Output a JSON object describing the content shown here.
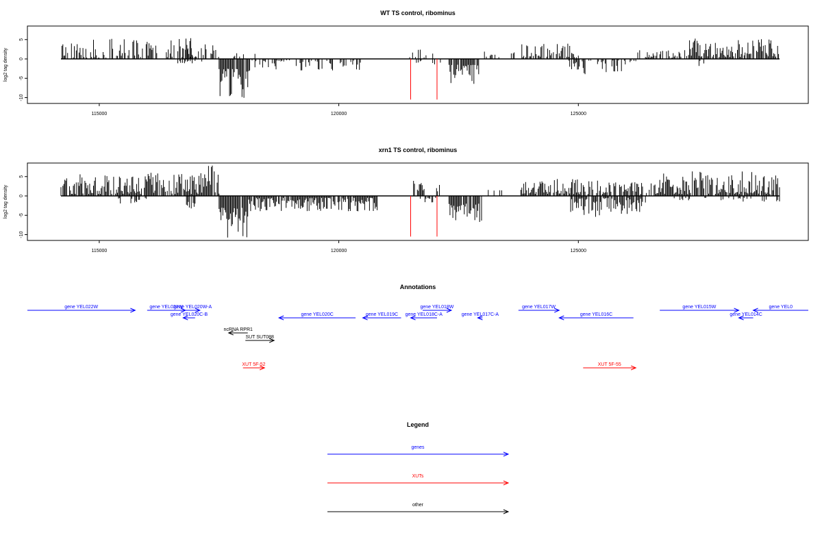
{
  "chart_data": [
    {
      "type": "bar",
      "title": "WT TS control, ribominus",
      "ylabel": "log2 tag density",
      "xlabel": "",
      "xlim": [
        113500,
        129800
      ],
      "ylim": [
        -11.5,
        8.5
      ],
      "x_ticks": [
        115000,
        120000,
        125000
      ],
      "x_tick_labels": [
        "115000",
        "120000",
        "125000"
      ],
      "y_ticks": [
        5,
        0,
        -5,
        -10
      ],
      "y_tick_labels": [
        "5",
        "0",
        "-5",
        "-10"
      ],
      "baseline_range": [
        114200,
        129200
      ],
      "colors": {
        "bars": "#000000",
        "markers": "#ff0000"
      },
      "markers": [
        {
          "x": 121500,
          "y_bottom": -10.5
        },
        {
          "x": 122050,
          "y_bottom": -10.5
        }
      ],
      "density": {
        "step": 20,
        "segments": [
          {
            "start": 114200,
            "end": 116950,
            "min": 0.3,
            "max": 5.2,
            "fill": 0.6,
            "sign": 1
          },
          {
            "start": 116600,
            "end": 117250,
            "min": 0.5,
            "max": 1.2,
            "fill": 0.25,
            "sign": -1
          },
          {
            "start": 116650,
            "end": 117500,
            "min": 0.5,
            "max": 5.5,
            "fill": 0.55,
            "sign": 1
          },
          {
            "start": 117500,
            "end": 118150,
            "min": 2.5,
            "max": 10.5,
            "fill": 0.95,
            "sign": -1
          },
          {
            "start": 117750,
            "end": 118250,
            "min": 0.5,
            "max": 1.5,
            "fill": 0.3,
            "sign": 1
          },
          {
            "start": 118150,
            "end": 120500,
            "min": 0.3,
            "max": 3.0,
            "fill": 0.45,
            "sign": -1
          },
          {
            "start": 121400,
            "end": 122100,
            "min": 0.4,
            "max": 3.0,
            "fill": 0.2,
            "sign": 1
          },
          {
            "start": 121500,
            "end": 122200,
            "min": 0.4,
            "max": 1.5,
            "fill": 0.15,
            "sign": -1
          },
          {
            "start": 122300,
            "end": 122950,
            "min": 1.5,
            "max": 6.5,
            "fill": 0.9,
            "sign": -1
          },
          {
            "start": 123000,
            "end": 123900,
            "min": 0.4,
            "max": 2.5,
            "fill": 0.25,
            "sign": 1
          },
          {
            "start": 123800,
            "end": 125000,
            "min": 0.4,
            "max": 4.0,
            "fill": 0.6,
            "sign": 1
          },
          {
            "start": 124800,
            "end": 126200,
            "min": 0.4,
            "max": 4.0,
            "fill": 0.5,
            "sign": -1
          },
          {
            "start": 126200,
            "end": 127300,
            "min": 0.3,
            "max": 2.5,
            "fill": 0.4,
            "sign": 1
          },
          {
            "start": 127300,
            "end": 129200,
            "min": 0.5,
            "max": 5.5,
            "fill": 0.75,
            "sign": 1
          },
          {
            "start": 127400,
            "end": 127700,
            "min": 0.5,
            "max": 2.5,
            "fill": 0.2,
            "sign": -1
          }
        ]
      }
    },
    {
      "type": "bar",
      "title": "xrn1 TS control, ribominus",
      "ylabel": "log2 tag density",
      "xlabel": "",
      "xlim": [
        113500,
        129800
      ],
      "ylim": [
        -11.5,
        8.5
      ],
      "x_ticks": [
        115000,
        120000,
        125000
      ],
      "x_tick_labels": [
        "115000",
        "120000",
        "125000"
      ],
      "y_ticks": [
        5,
        0,
        -5,
        -10
      ],
      "y_tick_labels": [
        "5",
        "0",
        "-5",
        "-10"
      ],
      "baseline_range": [
        114200,
        129200
      ],
      "colors": {
        "bars": "#000000",
        "markers": "#ff0000"
      },
      "markers": [
        {
          "x": 121500,
          "y_bottom": -10.5
        },
        {
          "x": 122050,
          "y_bottom": -10.5
        }
      ],
      "density": {
        "step": 20,
        "segments": [
          {
            "start": 114200,
            "end": 117500,
            "min": 0.5,
            "max": 6.0,
            "fill": 0.85,
            "sign": 1
          },
          {
            "start": 115400,
            "end": 116000,
            "min": 0.5,
            "max": 2.0,
            "fill": 0.3,
            "sign": -1
          },
          {
            "start": 116800,
            "end": 117000,
            "min": 1.0,
            "max": 3.5,
            "fill": 0.5,
            "sign": -1
          },
          {
            "start": 117200,
            "end": 117400,
            "min": 3.0,
            "max": 8.0,
            "fill": 0.6,
            "sign": 1
          },
          {
            "start": 117500,
            "end": 118100,
            "min": 3.0,
            "max": 11.0,
            "fill": 0.95,
            "sign": -1
          },
          {
            "start": 118100,
            "end": 120800,
            "min": 0.5,
            "max": 4.0,
            "fill": 0.85,
            "sign": -1
          },
          {
            "start": 121500,
            "end": 122100,
            "min": 0.5,
            "max": 4.0,
            "fill": 0.5,
            "sign": 1
          },
          {
            "start": 121500,
            "end": 122100,
            "min": 0.5,
            "max": 2.5,
            "fill": 0.3,
            "sign": -1
          },
          {
            "start": 122300,
            "end": 123000,
            "min": 2.0,
            "max": 7.0,
            "fill": 0.95,
            "sign": -1
          },
          {
            "start": 123000,
            "end": 123400,
            "min": 0.5,
            "max": 2.5,
            "fill": 0.3,
            "sign": 1
          },
          {
            "start": 123800,
            "end": 125300,
            "min": 0.5,
            "max": 4.5,
            "fill": 0.85,
            "sign": 1
          },
          {
            "start": 124800,
            "end": 126400,
            "min": 0.5,
            "max": 5.5,
            "fill": 0.8,
            "sign": -1
          },
          {
            "start": 125300,
            "end": 126600,
            "min": 0.5,
            "max": 4.0,
            "fill": 0.55,
            "sign": 1
          },
          {
            "start": 126600,
            "end": 129200,
            "min": 0.5,
            "max": 6.5,
            "fill": 0.9,
            "sign": 1
          },
          {
            "start": 126800,
            "end": 129200,
            "min": 0.5,
            "max": 1.5,
            "fill": 0.25,
            "sign": -1
          }
        ]
      }
    }
  ],
  "annotations": {
    "title": "Annotations",
    "xlim": [
      113500,
      129800
    ],
    "colors": {
      "genes": "#0000ff",
      "XUTs": "#ff0000",
      "other": "#000000"
    },
    "features": [
      {
        "label": "gene YEL022W",
        "start": 113500,
        "end": 115750,
        "row": 0,
        "strand": "+",
        "type": "genes"
      },
      {
        "label": "gene YEL021W",
        "start": 116000,
        "end": 116800,
        "row": 0,
        "strand": "+",
        "type": "genes"
      },
      {
        "label": "gene YEL020W-A",
        "start": 116800,
        "end": 117100,
        "row": 0,
        "strand": "+",
        "type": "genes"
      },
      {
        "label": "gene YEL020C-B",
        "start": 116750,
        "end": 117000,
        "row": 1,
        "strand": "-",
        "type": "genes"
      },
      {
        "label": "gene YEL020C",
        "start": 118750,
        "end": 120350,
        "row": 1,
        "strand": "-",
        "type": "genes"
      },
      {
        "label": "gene YEL019C",
        "start": 120500,
        "end": 121300,
        "row": 1,
        "strand": "-",
        "type": "genes"
      },
      {
        "label": "gene YEL018C-A",
        "start": 121500,
        "end": 122050,
        "row": 1,
        "strand": "-",
        "type": "genes"
      },
      {
        "label": "gene YEL018W",
        "start": 121750,
        "end": 122350,
        "row": 0,
        "strand": "+",
        "type": "genes"
      },
      {
        "label": "gene YEL017C-A",
        "start": 122900,
        "end": 123000,
        "row": 1,
        "strand": "-",
        "type": "genes"
      },
      {
        "label": "gene YEL017W",
        "start": 123750,
        "end": 124600,
        "row": 0,
        "strand": "+",
        "type": "genes"
      },
      {
        "label": "gene YEL016C",
        "start": 124600,
        "end": 126150,
        "row": 1,
        "strand": "-",
        "type": "genes"
      },
      {
        "label": "gene YEL015W",
        "start": 126700,
        "end": 128350,
        "row": 0,
        "strand": "+",
        "type": "genes"
      },
      {
        "label": "gene YEL014C",
        "start": 128350,
        "end": 128650,
        "row": 1,
        "strand": "-",
        "type": "genes"
      },
      {
        "label": "gene YEL0",
        "start": 128650,
        "end": 129800,
        "row": 0,
        "strand": "-",
        "type": "genes"
      },
      {
        "label": "ncRNA RPR1",
        "start": 117700,
        "end": 118100,
        "row": 2,
        "strand": "-",
        "type": "other"
      },
      {
        "label": "SUT SUT088",
        "start": 118050,
        "end": 118650,
        "row": 3,
        "strand": "+",
        "type": "other"
      },
      {
        "label": "XUT 5F-52",
        "start": 118000,
        "end": 118450,
        "row": 4,
        "strand": "+",
        "type": "XUTs"
      },
      {
        "label": "XUT 5F-55",
        "start": 125100,
        "end": 126200,
        "row": 4,
        "strand": "+",
        "type": "XUTs"
      }
    ]
  },
  "legend": {
    "title": "Legend",
    "items": [
      {
        "label": "genes",
        "color": "#0000ff"
      },
      {
        "label": "XUTs",
        "color": "#ff0000"
      },
      {
        "label": "other",
        "color": "#000000"
      }
    ]
  }
}
